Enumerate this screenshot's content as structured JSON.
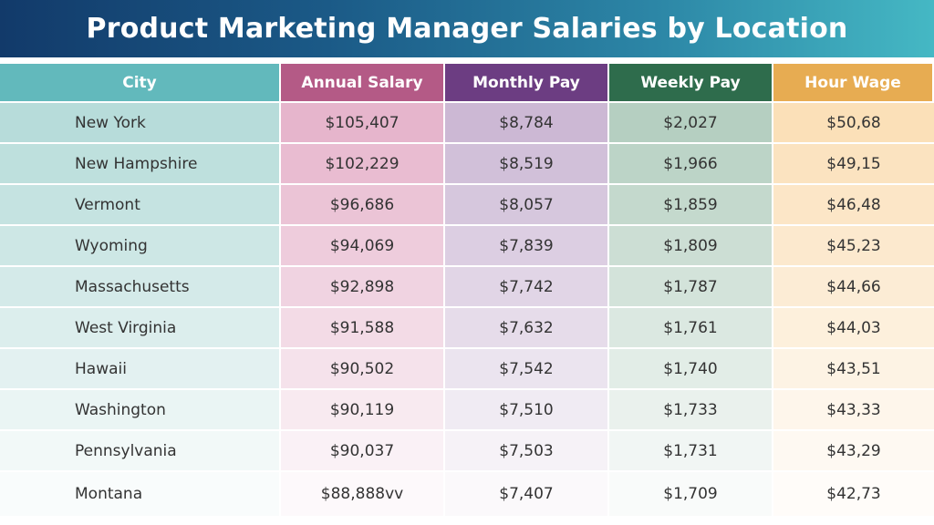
{
  "title": "Product Marketing Manager Salaries by Location",
  "colors": {
    "city_header": "#62b9bc",
    "annual_header": "#b45a86",
    "monthly_header": "#6c3d82",
    "weekly_header": "#2e6c4c",
    "hour_header": "#e7ac52",
    "city_tint": [
      170,
      214,
      211
    ],
    "annual_tint": [
      226,
      168,
      195
    ],
    "monthly_tint": [
      195,
      172,
      205
    ],
    "weekly_tint": [
      168,
      199,
      182
    ],
    "hour_tint": [
      250,
      218,
      172
    ]
  },
  "chart_data": {
    "type": "table",
    "columns": [
      "City",
      "Annual Salary",
      "Monthly Pay",
      "Weekly Pay",
      "Hour Wage"
    ],
    "rows": [
      [
        "New York",
        "$105,407",
        "$8,784",
        "$2,027",
        "$50,68"
      ],
      [
        "New Hampshire",
        "$102,229",
        "$8,519",
        "$1,966",
        "$49,15"
      ],
      [
        "Vermont",
        "$96,686",
        "$8,057",
        "$1,859",
        "$46,48"
      ],
      [
        "Wyoming",
        "$94,069",
        "$7,839",
        "$1,809",
        "$45,23"
      ],
      [
        "Massachusetts",
        "$92,898",
        "$7,742",
        "$1,787",
        "$44,66"
      ],
      [
        "West Virginia",
        "$91,588",
        "$7,632",
        "$1,761",
        "$44,03"
      ],
      [
        "Hawaii",
        "$90,502",
        "$7,542",
        "$1,740",
        "$43,51"
      ],
      [
        "Washington",
        "$90,119",
        "$7,510",
        "$1,733",
        "$43,33"
      ],
      [
        "Pennsylvania",
        "$90,037",
        "$7,503",
        "$1,731",
        "$43,29"
      ],
      [
        "Montana",
        "$88,888vv",
        "$7,407",
        "$1,709",
        "$42,73"
      ]
    ]
  }
}
